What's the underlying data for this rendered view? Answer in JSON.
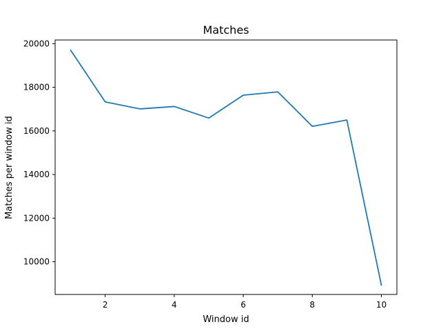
{
  "chart_data": {
    "type": "line",
    "title": "Matches",
    "xlabel": "Window id",
    "ylabel": "Matches per window id",
    "x": [
      1,
      2,
      3,
      4,
      5,
      6,
      7,
      8,
      9,
      10
    ],
    "series": [
      {
        "values": [
          19700,
          17330,
          17010,
          17120,
          16590,
          17640,
          17790,
          16210,
          16500,
          8930
        ],
        "color": "#1f77b4"
      }
    ],
    "xlim": [
      0.55,
      10.45
    ],
    "ylim": [
      8500,
      20170
    ],
    "xticks": [
      2,
      4,
      6,
      8,
      10
    ],
    "yticks": [
      10000,
      12000,
      14000,
      16000,
      18000,
      20000
    ],
    "grid": false,
    "legend": "none"
  }
}
